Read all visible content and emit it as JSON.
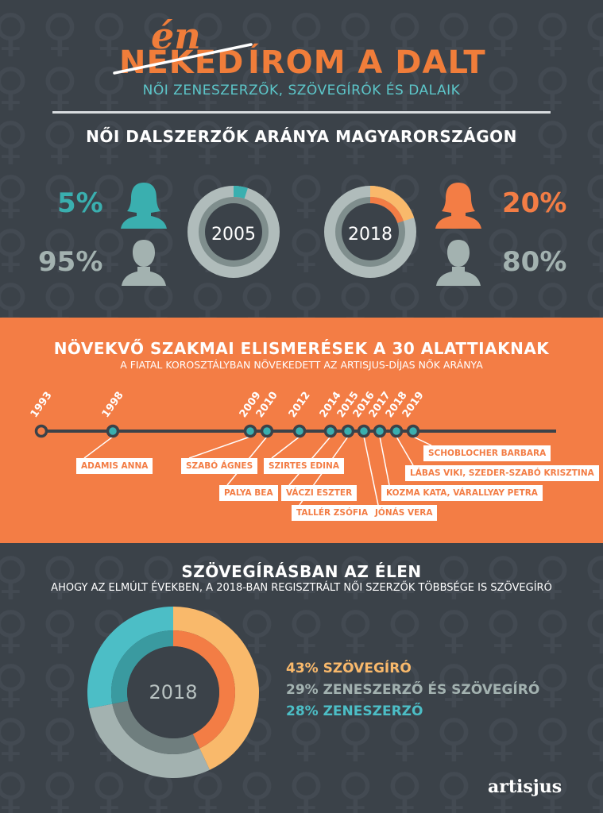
{
  "header": {
    "struck_word": "NEKED",
    "handwritten_word": "én",
    "title_rest": "ÍROM A DALT",
    "subtitle": "NŐI ZENESZERZŐK, SZÖVEGÍRÓK ÉS DALAIK"
  },
  "section1": {
    "title": "NŐI DALSZERZŐK ARÁNYA MAGYARORSZÁGON",
    "left": {
      "year": "2005",
      "women_pct": "5%",
      "men_pct": "95%",
      "women_share": 0.05
    },
    "right": {
      "year": "2018",
      "women_pct": "20%",
      "men_pct": "80%",
      "women_share": 0.2
    }
  },
  "section2": {
    "title": "NÖVEKVŐ SZAKMAI ELISMERÉSEK A 30 ALATTIAKNAK",
    "subtitle": "A FIATAL KOROSZTÁLYBAN NÖVEKEDETT AZ ARTISJUS-DÍJAS NŐK ARÁNYA",
    "timeline": [
      {
        "year": "1993",
        "name": ""
      },
      {
        "year": "1998",
        "name": "ADAMIS ANNA"
      },
      {
        "year": "2009",
        "name": "SZABÓ ÁGNES"
      },
      {
        "year": "2010",
        "name": "PALYA BEA"
      },
      {
        "year": "2012",
        "name": "SZIRTES EDINA"
      },
      {
        "year": "2014",
        "name": "VÁCZI ESZTER"
      },
      {
        "year": "2015",
        "name": "TALLÉR ZSÓFIA"
      },
      {
        "year": "2016",
        "name": "JÓNÁS VERA"
      },
      {
        "year": "2017",
        "name": "KOZMA KATA, VÁRALLYAY PETRA"
      },
      {
        "year": "2018",
        "name": "LÁBAS VIKI, SZEDER-SZABÓ KRISZTINA"
      },
      {
        "year": "2019",
        "name": "SCHOBLOCHER BARBARA"
      }
    ]
  },
  "section3": {
    "title": "SZÖVEGÍRÁSBAN AZ ÉLEN",
    "subtitle": "AHOGY AZ ELMÚLT ÉVEKBEN, A 2018-BAN REGISZTRÁLT NŐI SZERZŐK TÖBBSÉGE IS SZÖVEGÍRÓ",
    "year": "2018",
    "legend": [
      {
        "label": "43% SZÖVEGÍRÓ",
        "color": "#f9b96b"
      },
      {
        "label": "29% ZENESZERZŐ ÉS SZÖVEGÍRÓ",
        "color": "#a3b2b0"
      },
      {
        "label": "28% ZENESZERZŐ",
        "color": "#4cbec6"
      }
    ]
  },
  "footer": {
    "logo": "artisjus"
  },
  "colors": {
    "background": "#3b4249",
    "orange": "#f37d45",
    "teal": "#3aafaf",
    "grey": "#a3b2b0",
    "yellow": "#f9b96b"
  },
  "chart_data": [
    {
      "type": "pie",
      "title": "",
      "categories": [
        "nők",
        "férfiak"
      ],
      "values": [
        5,
        95
      ],
      "center_label": "2005"
    },
    {
      "type": "pie",
      "title": "",
      "categories": [
        "nők",
        "férfiak"
      ],
      "values": [
        20,
        80
      ],
      "center_label": "2018"
    },
    {
      "type": "pie",
      "title": "SZÖVEGÍRÁSBAN AZ ÉLEN",
      "categories": [
        "SZÖVEGÍRÓ",
        "ZENESZERZŐ ÉS SZÖVEGÍRÓ",
        "ZENESZERZŐ"
      ],
      "values": [
        43,
        29,
        28
      ],
      "center_label": "2018"
    }
  ]
}
